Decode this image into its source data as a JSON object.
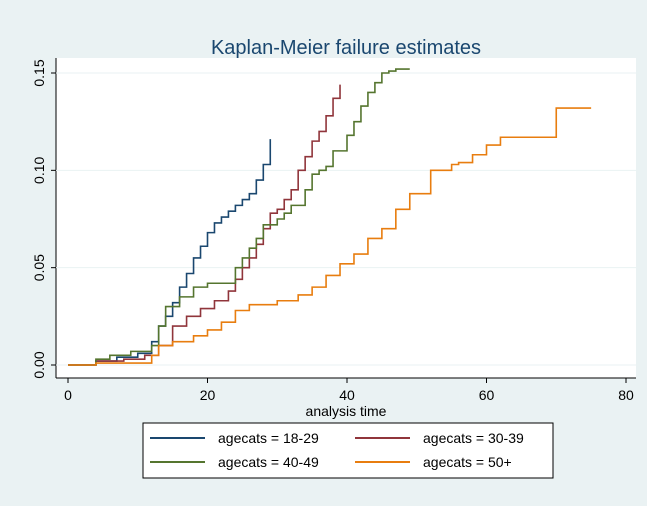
{
  "chart_data": {
    "type": "step",
    "title": "Kaplan-Meier failure estimates",
    "x_label": "analysis time",
    "xlim": [
      0,
      80
    ],
    "xticks": [
      0,
      20,
      40,
      60,
      80
    ],
    "ylim": [
      0,
      0.15
    ],
    "yticks": [
      {
        "value": 0,
        "label": "0.00"
      },
      {
        "value": 0.05,
        "label": "0.05"
      },
      {
        "value": 0.1,
        "label": "0.10"
      },
      {
        "value": 0.15,
        "label": "0.15"
      }
    ],
    "grid": true,
    "legend": "bottom",
    "series": [
      {
        "name": "agecats = 18-29",
        "color": "#1a476f",
        "x": [
          0,
          4,
          7,
          10,
          12,
          13,
          14,
          15,
          16,
          17,
          18,
          19,
          20,
          21,
          22,
          23,
          24,
          25,
          26,
          27,
          28,
          29
        ],
        "values": [
          0,
          0.002,
          0.004,
          0.006,
          0.012,
          0.02,
          0.025,
          0.032,
          0.04,
          0.047,
          0.055,
          0.061,
          0.068,
          0.073,
          0.076,
          0.079,
          0.082,
          0.085,
          0.088,
          0.095,
          0.103,
          0.116
        ]
      },
      {
        "name": "agecats = 30-39",
        "color": "#90353b",
        "x": [
          0,
          4,
          8,
          11,
          13,
          15,
          17,
          19,
          21,
          23,
          24,
          25,
          26,
          27,
          28,
          29,
          30,
          31,
          32,
          33,
          34,
          35,
          36,
          37,
          38,
          39
        ],
        "values": [
          0,
          0.002,
          0.003,
          0.005,
          0.01,
          0.02,
          0.025,
          0.029,
          0.033,
          0.038,
          0.044,
          0.05,
          0.055,
          0.062,
          0.07,
          0.078,
          0.08,
          0.085,
          0.09,
          0.1,
          0.107,
          0.115,
          0.12,
          0.128,
          0.137,
          0.144
        ]
      },
      {
        "name": "agecats = 40-49",
        "color": "#55752f",
        "x": [
          0,
          4,
          6,
          9,
          12,
          13,
          14,
          16,
          18,
          20,
          24,
          25,
          26,
          27,
          28,
          30,
          31,
          32,
          34,
          35,
          36,
          37,
          38,
          40,
          41,
          42,
          43,
          44,
          45,
          46,
          47,
          49
        ],
        "values": [
          0,
          0.003,
          0.005,
          0.007,
          0.01,
          0.02,
          0.03,
          0.035,
          0.04,
          0.042,
          0.05,
          0.055,
          0.06,
          0.065,
          0.072,
          0.075,
          0.078,
          0.082,
          0.09,
          0.098,
          0.1,
          0.102,
          0.11,
          0.118,
          0.125,
          0.133,
          0.14,
          0.145,
          0.15,
          0.151,
          0.152,
          0.152
        ]
      },
      {
        "name": "agecats = 50+",
        "color": "#e87d0f",
        "x": [
          0,
          4,
          12,
          13,
          15,
          18,
          20,
          22,
          24,
          26,
          30,
          33,
          35,
          37,
          39,
          41,
          43,
          45,
          47,
          49,
          52,
          55,
          56,
          58,
          60,
          62,
          64,
          70,
          75
        ],
        "values": [
          0,
          0.001,
          0.005,
          0.01,
          0.012,
          0.015,
          0.018,
          0.022,
          0.028,
          0.031,
          0.033,
          0.036,
          0.04,
          0.046,
          0.052,
          0.057,
          0.065,
          0.07,
          0.08,
          0.088,
          0.1,
          0.103,
          0.104,
          0.108,
          0.113,
          0.117,
          0.117,
          0.132,
          0.132
        ]
      }
    ]
  }
}
